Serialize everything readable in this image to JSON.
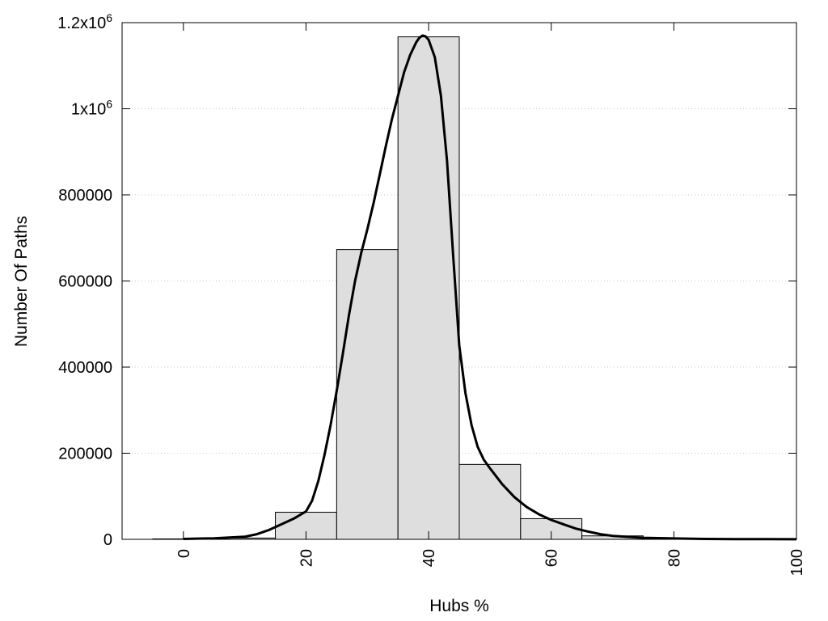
{
  "chart_data": {
    "type": "bar",
    "xlabel": "Hubs %",
    "ylabel": "Number Of Paths",
    "xlim": [
      -10,
      100
    ],
    "ylim": [
      0,
      1200000
    ],
    "grid": "horizontal dotted",
    "x_ticks": [
      0,
      20,
      40,
      60,
      80,
      100
    ],
    "x_tick_labels": [
      "0",
      "20",
      "40",
      "60",
      "80",
      "100"
    ],
    "y_ticks": [
      0,
      200000,
      400000,
      600000,
      800000,
      1000000,
      1200000
    ],
    "y_tick_labels": [
      {
        "base": "0",
        "exp": ""
      },
      {
        "base": "200000",
        "exp": ""
      },
      {
        "base": "400000",
        "exp": ""
      },
      {
        "base": "600000",
        "exp": ""
      },
      {
        "base": "800000",
        "exp": ""
      },
      {
        "base": "1x10",
        "exp": "6"
      },
      {
        "base": "1.2x10",
        "exp": "6"
      }
    ],
    "histogram": {
      "bin_width": 10,
      "bar_fill": "#dedede",
      "bins": [
        {
          "center": 0,
          "value": 1000
        },
        {
          "center": 10,
          "value": 3000
        },
        {
          "center": 20,
          "value": 63000
        },
        {
          "center": 30,
          "value": 673000
        },
        {
          "center": 40,
          "value": 1167000
        },
        {
          "center": 50,
          "value": 174000
        },
        {
          "center": 60,
          "value": 48000
        },
        {
          "center": 70,
          "value": 8000
        },
        {
          "center": 80,
          "value": 2500
        },
        {
          "center": 90,
          "value": 1000
        },
        {
          "center": 100,
          "value": 500
        }
      ]
    },
    "curve": {
      "color": "#000000",
      "x": [
        0,
        5,
        10,
        12,
        14,
        16,
        18,
        20,
        21,
        22,
        23,
        24,
        25,
        26,
        27,
        28,
        29,
        30,
        31,
        32,
        33,
        34,
        35,
        36,
        37,
        38,
        38.5,
        39,
        39.5,
        40,
        41,
        42,
        43,
        44,
        45,
        46,
        47,
        48,
        49,
        50,
        52,
        54,
        56,
        58,
        60,
        62,
        64,
        66,
        68,
        70,
        72,
        75,
        80,
        85,
        90,
        95,
        100
      ],
      "y": [
        1000,
        2500,
        6000,
        12000,
        22000,
        35000,
        48000,
        65000,
        90000,
        135000,
        195000,
        265000,
        345000,
        430000,
        520000,
        600000,
        665000,
        720000,
        780000,
        845000,
        912000,
        975000,
        1030000,
        1085000,
        1125000,
        1155000,
        1165000,
        1170000,
        1168000,
        1160000,
        1120000,
        1030000,
        880000,
        660000,
        450000,
        340000,
        265000,
        215000,
        185000,
        165000,
        128000,
        98000,
        75000,
        58000,
        45000,
        35000,
        25000,
        18000,
        12000,
        8000,
        6000,
        3500,
        2000,
        1000,
        500,
        300,
        200
      ]
    }
  }
}
